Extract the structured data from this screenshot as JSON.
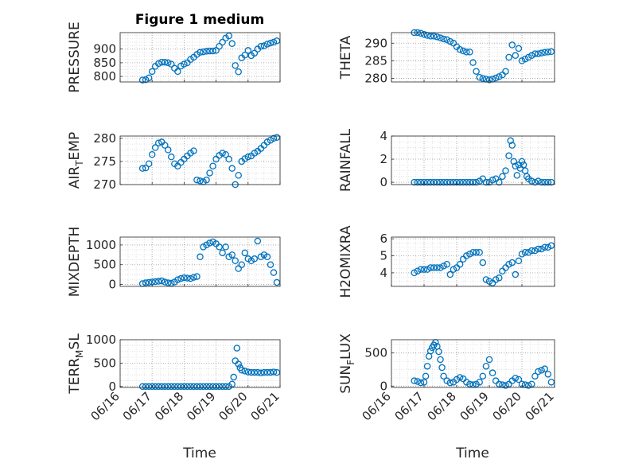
{
  "figure": {
    "title": "Figure 1 medium",
    "series_color": "#0072bd",
    "grid": "dotted major and minor",
    "x_tick_labels": [
      "06/16",
      "06/17",
      "06/18",
      "06/19",
      "06/20",
      "06/21"
    ],
    "x_label": "Time"
  },
  "chart_data": [
    {
      "type": "scatter",
      "ylabel_main": "PRESSURE",
      "ylabel_sub": "",
      "ylim": [
        780,
        960
      ],
      "yticks": [
        800,
        850,
        900
      ],
      "xlim": [
        0,
        5
      ],
      "x": [
        0.7,
        0.8,
        0.9,
        1.0,
        1.1,
        1.2,
        1.3,
        1.4,
        1.5,
        1.6,
        1.7,
        1.8,
        1.9,
        2.0,
        2.1,
        2.2,
        2.3,
        2.4,
        2.5,
        2.6,
        2.7,
        2.8,
        2.9,
        3.0,
        3.1,
        3.2,
        3.3,
        3.4,
        3.5,
        3.6,
        3.7,
        3.8,
        3.9,
        4.0,
        4.1,
        4.2,
        4.3,
        4.4,
        4.5,
        4.6,
        4.7,
        4.8,
        4.9
      ],
      "y": [
        787,
        788,
        795,
        818,
        837,
        847,
        852,
        852,
        850,
        845,
        830,
        818,
        838,
        845,
        850,
        862,
        870,
        880,
        888,
        890,
        892,
        893,
        893,
        895,
        910,
        925,
        940,
        948,
        920,
        840,
        817,
        868,
        878,
        895,
        876,
        885,
        900,
        910,
        912,
        918,
        922,
        925,
        930
      ]
    },
    {
      "type": "scatter",
      "ylabel_main": "THETA",
      "ylabel_sub": "",
      "ylim": [
        279,
        293
      ],
      "yticks": [
        280,
        285,
        290
      ],
      "xlim": [
        0,
        5
      ],
      "x": [
        0.7,
        0.8,
        0.9,
        1.0,
        1.1,
        1.2,
        1.3,
        1.4,
        1.5,
        1.6,
        1.7,
        1.8,
        1.9,
        2.0,
        2.1,
        2.2,
        2.3,
        2.4,
        2.5,
        2.6,
        2.7,
        2.8,
        2.9,
        3.0,
        3.1,
        3.2,
        3.3,
        3.4,
        3.5,
        3.6,
        3.7,
        3.8,
        3.9,
        4.0,
        4.1,
        4.2,
        4.3,
        4.4,
        4.5,
        4.6,
        4.7,
        4.8,
        4.9
      ],
      "y": [
        293,
        293,
        292.8,
        292.5,
        292.2,
        292,
        292,
        291.8,
        291.5,
        291.2,
        291,
        290.5,
        290,
        289,
        288.2,
        287.8,
        287.5,
        287.5,
        284.5,
        282,
        280.3,
        280,
        279.8,
        279.6,
        279.8,
        280.1,
        280.5,
        281,
        282,
        286,
        289.5,
        286.5,
        288.5,
        285,
        285.5,
        286,
        286.5,
        287,
        287,
        287.2,
        287.4,
        287.5,
        287.6
      ]
    },
    {
      "type": "scatter",
      "ylabel_main": "AIR",
      "ylabel_sub": "T",
      "ylabel_rest": "EMP",
      "ylim": [
        270,
        280.5
      ],
      "yticks": [
        270,
        275,
        280
      ],
      "xlim": [
        0,
        5
      ],
      "x": [
        0.7,
        0.8,
        0.9,
        1.0,
        1.1,
        1.2,
        1.3,
        1.4,
        1.5,
        1.6,
        1.7,
        1.8,
        1.9,
        2.0,
        2.1,
        2.2,
        2.3,
        2.4,
        2.5,
        2.6,
        2.7,
        2.8,
        2.9,
        3.0,
        3.1,
        3.2,
        3.3,
        3.4,
        3.5,
        3.6,
        3.7,
        3.8,
        3.9,
        4.0,
        4.1,
        4.2,
        4.3,
        4.4,
        4.5,
        4.6,
        4.7,
        4.8,
        4.9
      ],
      "y": [
        273.5,
        273.6,
        274.5,
        276.5,
        278,
        279,
        279.2,
        278.5,
        277.5,
        276,
        274.5,
        274,
        274.8,
        275.5,
        276.2,
        276.8,
        277.3,
        271,
        270.8,
        270.6,
        271,
        272.5,
        274,
        275.5,
        276.3,
        276.8,
        276.5,
        275.5,
        273.5,
        270,
        272,
        275,
        275.6,
        276,
        276.2,
        276.8,
        277.2,
        277.8,
        278.5,
        279.2,
        279.6,
        280,
        280.2
      ]
    },
    {
      "type": "scatter",
      "ylabel_main": "RAINFALL",
      "ylabel_sub": "",
      "ylim": [
        -0.2,
        4
      ],
      "yticks": [
        0,
        2,
        4
      ],
      "xlim": [
        0,
        5
      ],
      "x": [
        0.7,
        0.8,
        0.9,
        1.0,
        1.1,
        1.2,
        1.3,
        1.4,
        1.5,
        1.6,
        1.7,
        1.8,
        1.9,
        2.0,
        2.1,
        2.2,
        2.3,
        2.4,
        2.5,
        2.6,
        2.7,
        2.8,
        2.9,
        3.0,
        3.1,
        3.2,
        3.3,
        3.4,
        3.5,
        3.6,
        3.65,
        3.7,
        3.75,
        3.8,
        3.85,
        3.9,
        3.95,
        4.0,
        4.05,
        4.1,
        4.15,
        4.2,
        4.3,
        4.4,
        4.5,
        4.6,
        4.7,
        4.8,
        4.9
      ],
      "y": [
        0,
        0,
        0,
        0,
        0,
        0,
        0,
        0,
        0,
        0,
        0,
        0,
        0,
        0,
        0,
        0,
        0,
        0,
        0,
        0,
        0.1,
        0.3,
        0,
        0,
        0.2,
        0.3,
        0,
        0.5,
        1.0,
        2.3,
        3.6,
        3.2,
        1.8,
        1.4,
        0.6,
        1.5,
        1.2,
        1.8,
        1.5,
        1.0,
        0.5,
        0.3,
        0.1,
        0,
        0.1,
        0,
        0,
        0,
        0
      ]
    },
    {
      "type": "scatter",
      "ylabel_main": "MIXDEPTH",
      "ylabel_sub": "",
      "ylim": [
        -50,
        1200
      ],
      "yticks": [
        0,
        500,
        1000
      ],
      "xlim": [
        0,
        5
      ],
      "x": [
        0.7,
        0.8,
        0.9,
        1.0,
        1.1,
        1.2,
        1.3,
        1.4,
        1.5,
        1.6,
        1.7,
        1.8,
        1.9,
        2.0,
        2.1,
        2.2,
        2.3,
        2.4,
        2.5,
        2.6,
        2.7,
        2.8,
        2.9,
        3.0,
        3.1,
        3.2,
        3.3,
        3.4,
        3.5,
        3.6,
        3.7,
        3.8,
        3.9,
        4.0,
        4.1,
        4.2,
        4.3,
        4.4,
        4.5,
        4.6,
        4.7,
        4.8,
        4.9
      ],
      "y": [
        20,
        40,
        50,
        60,
        70,
        80,
        90,
        60,
        40,
        30,
        60,
        120,
        150,
        170,
        160,
        150,
        180,
        200,
        700,
        950,
        1000,
        1050,
        1080,
        1030,
        950,
        800,
        950,
        700,
        750,
        600,
        400,
        500,
        800,
        650,
        600,
        650,
        1100,
        700,
        750,
        700,
        500,
        300,
        50
      ]
    },
    {
      "type": "scatter",
      "ylabel_main": "H2OMIXRA",
      "ylabel_sub": "",
      "ylim": [
        3.2,
        6.1
      ],
      "yticks": [
        4,
        5,
        6
      ],
      "xlim": [
        0,
        5
      ],
      "x": [
        0.7,
        0.8,
        0.9,
        1.0,
        1.1,
        1.2,
        1.3,
        1.4,
        1.5,
        1.6,
        1.7,
        1.8,
        1.9,
        2.0,
        2.1,
        2.2,
        2.3,
        2.4,
        2.5,
        2.6,
        2.7,
        2.8,
        2.9,
        3.0,
        3.1,
        3.2,
        3.3,
        3.4,
        3.5,
        3.6,
        3.7,
        3.8,
        3.9,
        4.0,
        4.1,
        4.2,
        4.3,
        4.4,
        4.5,
        4.6,
        4.7,
        4.8,
        4.9
      ],
      "y": [
        4.0,
        4.1,
        4.2,
        4.2,
        4.2,
        4.3,
        4.3,
        4.3,
        4.3,
        4.4,
        4.5,
        3.9,
        4.2,
        4.3,
        4.5,
        4.8,
        5.0,
        5.1,
        5.2,
        5.2,
        5.2,
        4.6,
        3.6,
        3.5,
        3.4,
        3.6,
        3.7,
        4.1,
        4.3,
        4.5,
        4.6,
        3.9,
        4.7,
        5.1,
        5.2,
        5.2,
        5.3,
        5.3,
        5.4,
        5.4,
        5.5,
        5.5,
        5.6
      ]
    },
    {
      "type": "scatter",
      "ylabel_main": "TERR",
      "ylabel_sub": "M",
      "ylabel_rest": "SL",
      "ylim": [
        -20,
        1000
      ],
      "yticks": [
        0,
        500,
        1000
      ],
      "xlim": [
        0,
        5
      ],
      "x": [
        0.7,
        0.8,
        0.9,
        1.0,
        1.1,
        1.2,
        1.3,
        1.4,
        1.5,
        1.6,
        1.7,
        1.8,
        1.9,
        2.0,
        2.1,
        2.2,
        2.3,
        2.4,
        2.5,
        2.6,
        2.7,
        2.8,
        2.9,
        3.0,
        3.1,
        3.2,
        3.3,
        3.4,
        3.5,
        3.55,
        3.6,
        3.65,
        3.7,
        3.75,
        3.8,
        3.9,
        4.0,
        4.1,
        4.2,
        4.3,
        4.4,
        4.5,
        4.6,
        4.7,
        4.8,
        4.9
      ],
      "y": [
        0,
        0,
        0,
        0,
        0,
        0,
        0,
        0,
        0,
        0,
        0,
        0,
        0,
        0,
        0,
        0,
        0,
        0,
        0,
        0,
        0,
        0,
        0,
        0,
        0,
        0,
        0,
        0,
        50,
        200,
        550,
        820,
        480,
        400,
        350,
        330,
        310,
        300,
        300,
        300,
        290,
        300,
        300,
        300,
        310,
        300
      ]
    },
    {
      "type": "scatter",
      "ylabel_main": "SUN",
      "ylabel_sub": "F",
      "ylabel_rest": "LUX",
      "ylim": [
        -20,
        700
      ],
      "yticks": [
        0,
        500
      ],
      "xlim": [
        0,
        5
      ],
      "x": [
        0.7,
        0.8,
        0.9,
        1.0,
        1.05,
        1.1,
        1.15,
        1.2,
        1.25,
        1.3,
        1.35,
        1.4,
        1.45,
        1.5,
        1.55,
        1.6,
        1.7,
        1.8,
        1.9,
        2.0,
        2.1,
        2.2,
        2.3,
        2.4,
        2.5,
        2.6,
        2.7,
        2.8,
        2.9,
        3.0,
        3.1,
        3.2,
        3.3,
        3.4,
        3.5,
        3.6,
        3.7,
        3.8,
        3.9,
        4.0,
        4.1,
        4.2,
        4.3,
        4.4,
        4.5,
        4.6,
        4.7,
        4.8,
        4.9
      ],
      "y": [
        80,
        70,
        50,
        60,
        150,
        300,
        450,
        530,
        580,
        620,
        660,
        600,
        520,
        400,
        280,
        150,
        80,
        50,
        60,
        100,
        130,
        110,
        60,
        30,
        20,
        30,
        60,
        150,
        300,
        400,
        200,
        80,
        30,
        20,
        10,
        30,
        80,
        120,
        100,
        30,
        20,
        10,
        30,
        150,
        220,
        240,
        260,
        180,
        60
      ]
    }
  ]
}
